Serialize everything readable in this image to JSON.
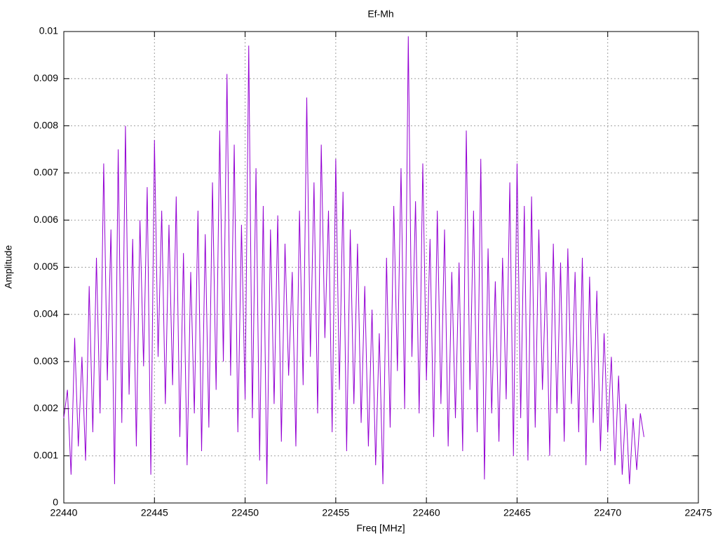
{
  "chart_data": {
    "type": "line",
    "title": "Ef-Mh",
    "xlabel": "Freq [MHz]",
    "ylabel": "Amplitude",
    "color": "#9400d3",
    "grid": true,
    "xlim": [
      22440,
      22475
    ],
    "xticks": [
      22440,
      22445,
      22450,
      22455,
      22460,
      22465,
      22470,
      22475
    ],
    "ylim": [
      0,
      0.01
    ],
    "yticks": [
      0,
      0.001,
      0.002,
      0.003,
      0.004,
      0.005,
      0.006,
      0.007,
      0.008,
      0.009,
      0.01
    ],
    "x": [
      22440,
      22440.2,
      22440.4,
      22440.6,
      22440.8,
      22441,
      22441.2,
      22441.4,
      22441.6,
      22441.8,
      22442,
      22442.2,
      22442.4,
      22442.6,
      22442.8,
      22443,
      22443.2,
      22443.4,
      22443.6,
      22443.8,
      22444,
      22444.2,
      22444.4,
      22444.6,
      22444.8,
      22445,
      22445.2,
      22445.4,
      22445.6,
      22445.8,
      22446,
      22446.2,
      22446.4,
      22446.6,
      22446.8,
      22447,
      22447.2,
      22447.4,
      22447.6,
      22447.8,
      22448,
      22448.2,
      22448.4,
      22448.6,
      22448.8,
      22449,
      22449.2,
      22449.4,
      22449.6,
      22449.8,
      22450,
      22450.2,
      22450.4,
      22450.6,
      22450.8,
      22451,
      22451.2,
      22451.4,
      22451.6,
      22451.8,
      22452,
      22452.2,
      22452.4,
      22452.6,
      22452.8,
      22453,
      22453.2,
      22453.4,
      22453.6,
      22453.8,
      22454,
      22454.2,
      22454.4,
      22454.6,
      22454.8,
      22455,
      22455.2,
      22455.4,
      22455.6,
      22455.8,
      22456,
      22456.2,
      22456.4,
      22456.6,
      22456.8,
      22457,
      22457.2,
      22457.4,
      22457.6,
      22457.8,
      22458,
      22458.2,
      22458.4,
      22458.6,
      22458.8,
      22459,
      22459.2,
      22459.4,
      22459.6,
      22459.8,
      22460,
      22460.2,
      22460.4,
      22460.6,
      22460.8,
      22461,
      22461.2,
      22461.4,
      22461.6,
      22461.8,
      22462,
      22462.2,
      22462.4,
      22462.6,
      22462.8,
      22463,
      22463.2,
      22463.4,
      22463.6,
      22463.8,
      22464,
      22464.2,
      22464.4,
      22464.6,
      22464.8,
      22465,
      22465.2,
      22465.4,
      22465.6,
      22465.8,
      22466,
      22466.2,
      22466.4,
      22466.6,
      22466.8,
      22467,
      22467.2,
      22467.4,
      22467.6,
      22467.8,
      22468,
      22468.2,
      22468.4,
      22468.6,
      22468.8,
      22469,
      22469.2,
      22469.4,
      22469.6,
      22469.8,
      22470,
      22470.2,
      22470.4,
      22470.6,
      22470.8,
      22471,
      22471.2,
      22471.4,
      22471.6,
      22471.8,
      22472
    ],
    "values": [
      0.0018,
      0.0024,
      0.0006,
      0.0035,
      0.0012,
      0.0031,
      0.0009,
      0.0046,
      0.0015,
      0.0052,
      0.0019,
      0.0072,
      0.0026,
      0.0058,
      0.0004,
      0.0075,
      0.0017,
      0.008,
      0.0023,
      0.0056,
      0.0012,
      0.006,
      0.0029,
      0.0067,
      0.0006,
      0.0077,
      0.0031,
      0.0062,
      0.0021,
      0.0059,
      0.0025,
      0.0065,
      0.0014,
      0.0053,
      0.0008,
      0.0049,
      0.0019,
      0.0062,
      0.0011,
      0.0057,
      0.0016,
      0.0068,
      0.0024,
      0.0079,
      0.003,
      0.0091,
      0.0027,
      0.0076,
      0.0015,
      0.0059,
      0.0022,
      0.0097,
      0.0018,
      0.0071,
      0.0009,
      0.0063,
      0.0004,
      0.0058,
      0.0021,
      0.0061,
      0.0013,
      0.0055,
      0.0027,
      0.0049,
      0.0012,
      0.0062,
      0.0025,
      0.0086,
      0.0031,
      0.0068,
      0.0019,
      0.0076,
      0.0035,
      0.0062,
      0.0015,
      0.0073,
      0.0024,
      0.0066,
      0.0011,
      0.0058,
      0.0021,
      0.0055,
      0.0017,
      0.0046,
      0.0012,
      0.0041,
      0.0008,
      0.0036,
      0.0004,
      0.0052,
      0.0016,
      0.0063,
      0.0028,
      0.0071,
      0.002,
      0.0099,
      0.0031,
      0.0064,
      0.0019,
      0.0072,
      0.0026,
      0.0056,
      0.0014,
      0.0062,
      0.0021,
      0.0058,
      0.0012,
      0.0049,
      0.0018,
      0.0051,
      0.0011,
      0.0079,
      0.0024,
      0.0062,
      0.0015,
      0.0073,
      0.0005,
      0.0054,
      0.0019,
      0.0047,
      0.0013,
      0.0052,
      0.0022,
      0.0068,
      0.001,
      0.0072,
      0.0018,
      0.0063,
      0.0009,
      0.0065,
      0.0016,
      0.0058,
      0.0024,
      0.0049,
      0.001,
      0.0055,
      0.0019,
      0.0051,
      0.0013,
      0.0054,
      0.0021,
      0.0049,
      0.0015,
      0.0052,
      0.0008,
      0.0048,
      0.0017,
      0.0045,
      0.0011,
      0.0036,
      0.0015,
      0.0031,
      0.0008,
      0.0027,
      0.0006,
      0.0021,
      0.0004,
      0.0018,
      0.0007,
      0.0019,
      0.0014
    ]
  }
}
